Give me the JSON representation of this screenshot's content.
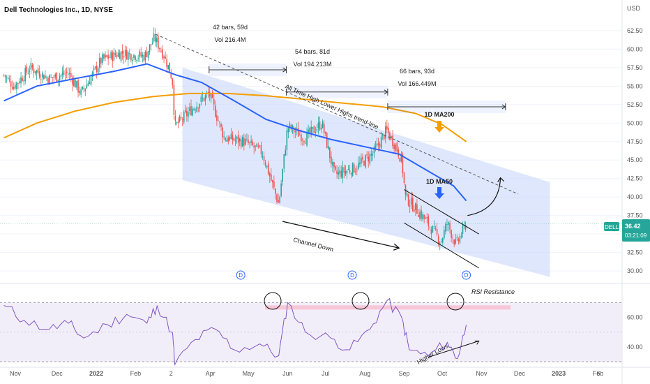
{
  "chart_title": "Dell Technologies Inc., 1D, NYSE",
  "currency": "USD",
  "ticker_badge": {
    "symbol": "DELL",
    "price": "36.42",
    "countdown": "03:21:09",
    "color": "#26a69a"
  },
  "colors": {
    "up": "#26a69a",
    "down": "#ef5350",
    "ma50": "#2962ff",
    "ma200": "#f59d00",
    "channel": "#c5d3fb",
    "rsi": "#7e57c2",
    "rsi_band": "#ede7f6",
    "rsi_resistance": "#f8bbd0"
  },
  "annotations": {
    "range1_bars": "42 bars, 59d",
    "range1_vol": "Vol 216.4M",
    "range2_bars": "54 bars, 81d",
    "range2_vol": "Vol 194.213M",
    "range3_bars": "66 bars, 93d",
    "range3_vol": "Vol 166.449M",
    "trendline_label": "All Time High Lower Highs trend-line",
    "ma200_label": "1D MA200",
    "ma50_label": "1D MA50",
    "channel_label": "Channel Down",
    "rsi_resistance_label": "RSI Resistance",
    "higher_lows_label": "Higher Lows",
    "dividend_marker": "D"
  },
  "chart_data": [
    {
      "type": "line",
      "panel": "price",
      "ylim": [
        28.5,
        64
      ],
      "y_ticks": [
        "62.50",
        "60.00",
        "57.50",
        "55.00",
        "52.50",
        "50.00",
        "47.50",
        "45.00",
        "42.50",
        "40.00",
        "37.50",
        "35.00",
        "32.50",
        "30.00"
      ],
      "x_ticks": [
        "Nov",
        "Dec",
        "2022",
        "Feb",
        "2",
        "Apr",
        "May",
        "Jun",
        "Jul",
        "Aug",
        "Sep",
        "Oct",
        "Nov",
        "Dec",
        "2023",
        "Feb",
        "6"
      ],
      "x_range": [
        "2021-11",
        "2023-02"
      ],
      "price_path": [
        [
          "2021-10-20",
          56.5
        ],
        [
          "2021-10-28",
          55.0
        ],
        [
          "2021-11-10",
          57.5
        ],
        [
          "2021-11-25",
          56.0
        ],
        [
          "2021-12-10",
          56.8
        ],
        [
          "2021-12-20",
          54.0
        ],
        [
          "2022-01-05",
          58.5
        ],
        [
          "2022-01-20",
          59.5
        ],
        [
          "2022-02-08",
          59.0
        ],
        [
          "2022-02-16",
          61.5
        ],
        [
          "2022-02-24",
          59.0
        ],
        [
          "2022-03-02",
          56.0
        ],
        [
          "2022-03-04",
          49.5
        ],
        [
          "2022-03-18",
          52.0
        ],
        [
          "2022-03-31",
          54.0
        ],
        [
          "2022-04-12",
          48.0
        ],
        [
          "2022-04-28",
          47.5
        ],
        [
          "2022-05-12",
          46.0
        ],
        [
          "2022-05-25",
          39.0
        ],
        [
          "2022-06-01",
          49.5
        ],
        [
          "2022-06-15",
          48.0
        ],
        [
          "2022-06-28",
          50.0
        ],
        [
          "2022-07-08",
          43.0
        ],
        [
          "2022-07-25",
          44.0
        ],
        [
          "2022-08-08",
          46.0
        ],
        [
          "2022-08-18",
          49.0
        ],
        [
          "2022-08-25",
          47.0
        ],
        [
          "2022-08-30",
          45.0
        ],
        [
          "2022-09-02",
          40.0
        ],
        [
          "2022-09-15",
          37.5
        ],
        [
          "2022-09-30",
          34.0
        ],
        [
          "2022-10-05",
          36.5
        ],
        [
          "2022-10-12",
          33.5
        ],
        [
          "2022-10-20",
          36.42
        ]
      ],
      "ma50": [
        [
          "2021-10-20",
          53.0
        ],
        [
          "2021-11-15",
          55.0
        ],
        [
          "2021-12-15",
          56.0
        ],
        [
          "2022-01-15",
          57.0
        ],
        [
          "2022-02-10",
          58.0
        ],
        [
          "2022-03-05",
          56.5
        ],
        [
          "2022-03-25",
          55.5
        ],
        [
          "2022-04-20",
          53.0
        ],
        [
          "2022-05-15",
          50.5
        ],
        [
          "2022-06-10",
          49.0
        ],
        [
          "2022-07-05",
          47.8
        ],
        [
          "2022-08-01",
          46.8
        ],
        [
          "2022-08-28",
          45.8
        ],
        [
          "2022-09-20",
          43.5
        ],
        [
          "2022-10-10",
          41.5
        ],
        [
          "2022-10-20",
          39.5
        ]
      ],
      "ma200": [
        [
          "2021-10-20",
          48.0
        ],
        [
          "2021-11-15",
          50.0
        ],
        [
          "2021-12-15",
          51.6
        ],
        [
          "2022-01-15",
          52.8
        ],
        [
          "2022-02-15",
          53.6
        ],
        [
          "2022-03-15",
          54.0
        ],
        [
          "2022-04-15",
          54.0
        ],
        [
          "2022-05-15",
          53.7
        ],
        [
          "2022-06-15",
          53.2
        ],
        [
          "2022-07-15",
          52.7
        ],
        [
          "2022-08-15",
          52.2
        ],
        [
          "2022-09-10",
          51.3
        ],
        [
          "2022-10-01",
          49.8
        ],
        [
          "2022-10-20",
          47.5
        ]
      ],
      "dividend_dates": [
        "2022-04-25",
        "2022-07-22",
        "2022-10-20"
      ]
    },
    {
      "type": "line",
      "panel": "rsi",
      "ylim": [
        30,
        82
      ],
      "y_ticks": [
        "60.00",
        "40.00"
      ],
      "levels": [
        70,
        30
      ],
      "rsi_path": [
        [
          "2021-10-20",
          68
        ],
        [
          "2021-11-05",
          58
        ],
        [
          "2021-11-25",
          52
        ],
        [
          "2021-12-10",
          56
        ],
        [
          "2021-12-22",
          46
        ],
        [
          "2022-01-10",
          55
        ],
        [
          "2022-01-25",
          62
        ],
        [
          "2022-02-10",
          56
        ],
        [
          "2022-02-18",
          68
        ],
        [
          "2022-03-02",
          50
        ],
        [
          "2022-03-04",
          28
        ],
        [
          "2022-03-20",
          45
        ],
        [
          "2022-04-05",
          52
        ],
        [
          "2022-04-20",
          38
        ],
        [
          "2022-05-10",
          42
        ],
        [
          "2022-05-25",
          34
        ],
        [
          "2022-06-01",
          70
        ],
        [
          "2022-06-15",
          50
        ],
        [
          "2022-07-05",
          46
        ],
        [
          "2022-07-20",
          38
        ],
        [
          "2022-08-05",
          52
        ],
        [
          "2022-08-18",
          71
        ],
        [
          "2022-08-30",
          60
        ],
        [
          "2022-09-05",
          38
        ],
        [
          "2022-09-20",
          34
        ],
        [
          "2022-10-05",
          43
        ],
        [
          "2022-10-13",
          32
        ],
        [
          "2022-10-20",
          55
        ]
      ]
    }
  ]
}
